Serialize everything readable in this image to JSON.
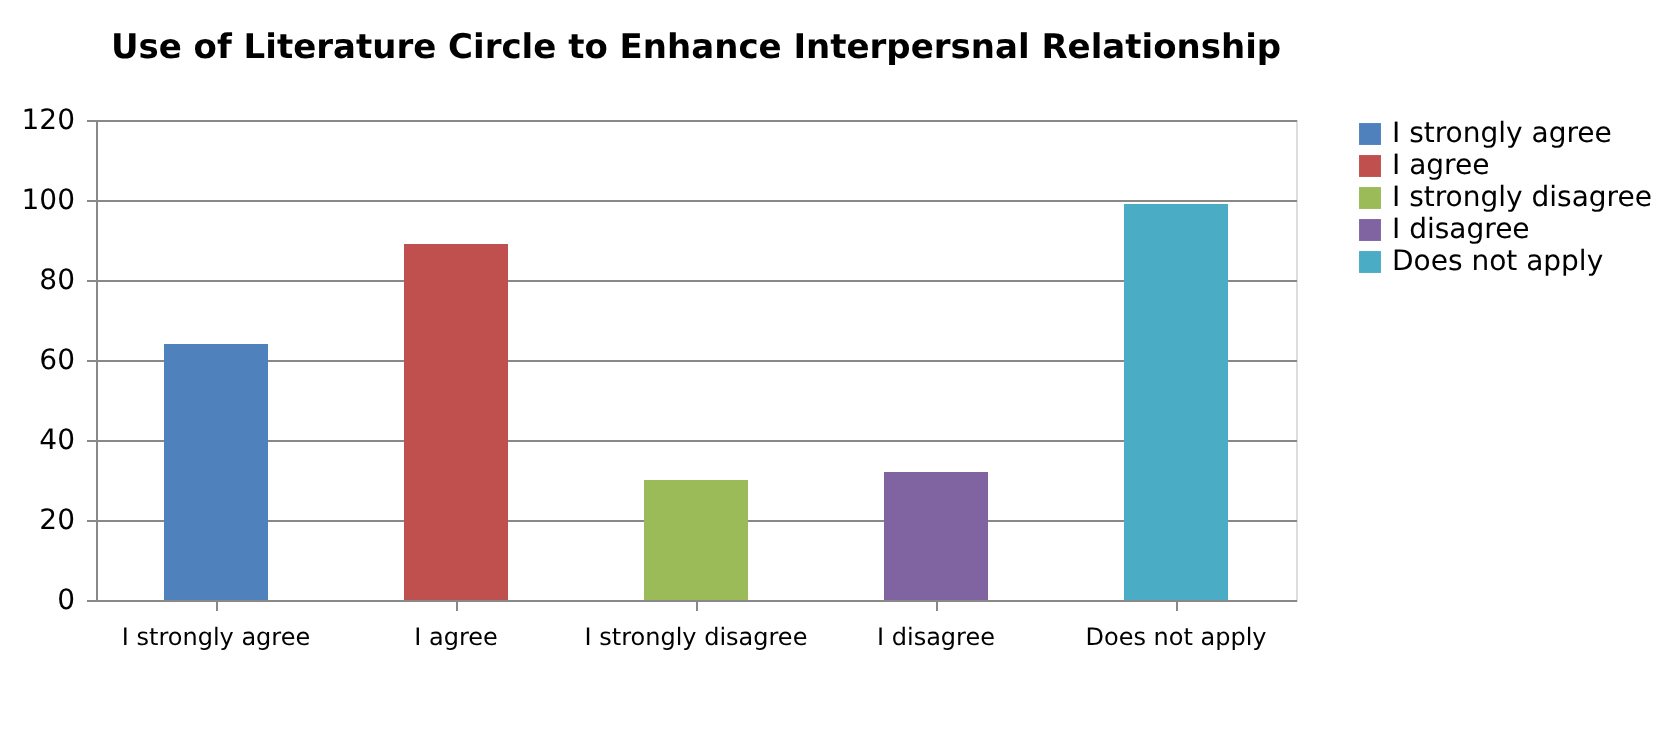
{
  "chart_data": {
    "type": "bar",
    "title": "Use of Literature Circle to Enhance Interpersnal Relationship",
    "categories": [
      "I strongly agree",
      "I agree",
      "I strongly disagree",
      "I disagree",
      "Does not apply"
    ],
    "stacked": true,
    "series": [
      {
        "name": "I strongly agree",
        "color": "#4f81bd",
        "values": [
          64,
          null,
          null,
          null,
          null
        ]
      },
      {
        "name": "I agree",
        "color": "#c0504d",
        "values": [
          null,
          89,
          null,
          null,
          null
        ]
      },
      {
        "name": "I strongly disagree",
        "color": "#9bbb59",
        "values": [
          null,
          null,
          30,
          null,
          null
        ]
      },
      {
        "name": "I disagree",
        "color": "#8064a2",
        "values": [
          null,
          null,
          null,
          32,
          null
        ]
      },
      {
        "name": "Does not apply",
        "color": "#4bacc6",
        "values": [
          null,
          null,
          null,
          null,
          99
        ]
      }
    ],
    "ylim": [
      0,
      120
    ],
    "yticks": [
      0,
      20,
      40,
      60,
      80,
      100,
      120
    ],
    "grid": "y",
    "legend": "right"
  }
}
